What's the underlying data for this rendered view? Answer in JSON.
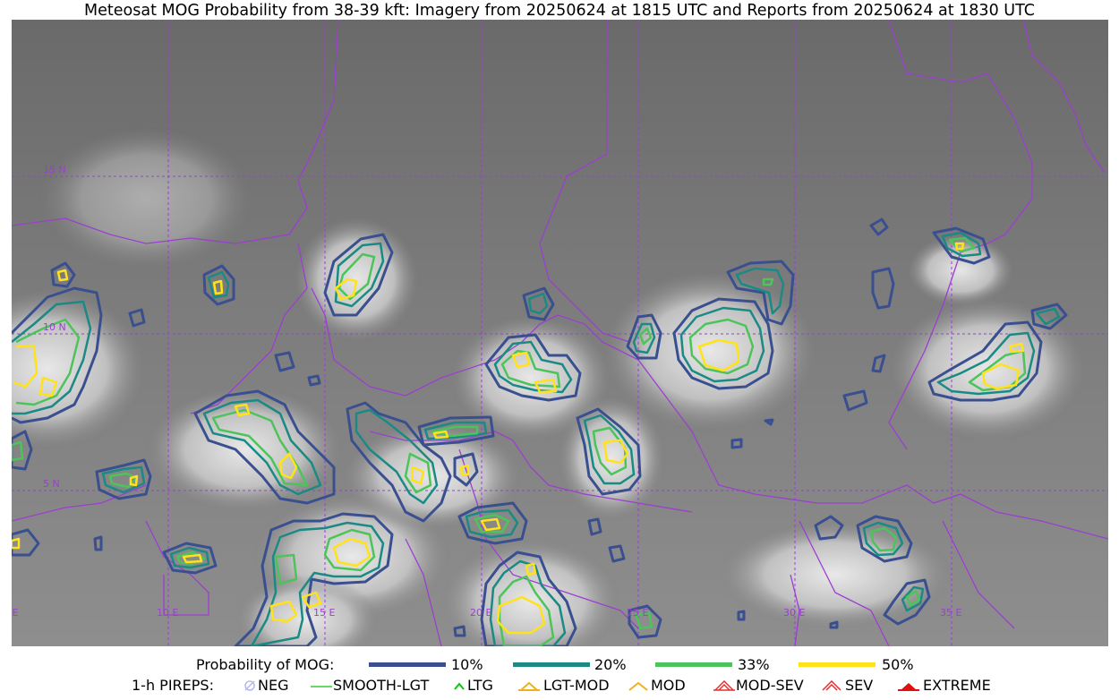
{
  "title": "Meteosat MOG Probability from 38-39 kft: Imagery from 20250624 at 1815 UTC and Reports from 20250624 at 1830 UTC",
  "map": {
    "lat_labels": [
      "15 N",
      "10 N",
      "5 N"
    ],
    "lon_labels": [
      "5 E",
      "10 E",
      "15 E",
      "20 E",
      "25 E",
      "30 E",
      "35 E"
    ],
    "colors": {
      "border": "#9b3fd0",
      "grid": "#9b3fd0",
      "p10": "#3a4f8f",
      "p20": "#1b8a84",
      "p33": "#4cc45a",
      "p50": "#ffe21a"
    }
  },
  "legend": {
    "prob_title": "Probability of MOG:",
    "prob_items": [
      {
        "label": "10%",
        "color": "#3a4f8f"
      },
      {
        "label": "20%",
        "color": "#1b8a84"
      },
      {
        "label": "33%",
        "color": "#4cc45a"
      },
      {
        "label": "50%",
        "color": "#ffe21a"
      }
    ],
    "pirep_title": "1-h PIREPS:",
    "pirep_items": [
      {
        "label": "NEG",
        "icon": "neg-icon",
        "color": "#b8b8f0"
      },
      {
        "label": "SMOOTH-LGT",
        "icon": "smooth-lgt-icon",
        "color": "#33cc33"
      },
      {
        "label": "LTG",
        "icon": "ltg-icon",
        "color": "#00cc00"
      },
      {
        "label": "LGT-MOD",
        "icon": "lgt-mod-icon",
        "color": "#f0b020"
      },
      {
        "label": "MOD",
        "icon": "mod-icon",
        "color": "#f0b020"
      },
      {
        "label": "MOD-SEV",
        "icon": "mod-sev-icon",
        "color": "#e03030"
      },
      {
        "label": "SEV",
        "icon": "sev-icon",
        "color": "#e03030"
      },
      {
        "label": "EXTREME",
        "icon": "extreme-icon",
        "color": "#e01010"
      }
    ]
  }
}
